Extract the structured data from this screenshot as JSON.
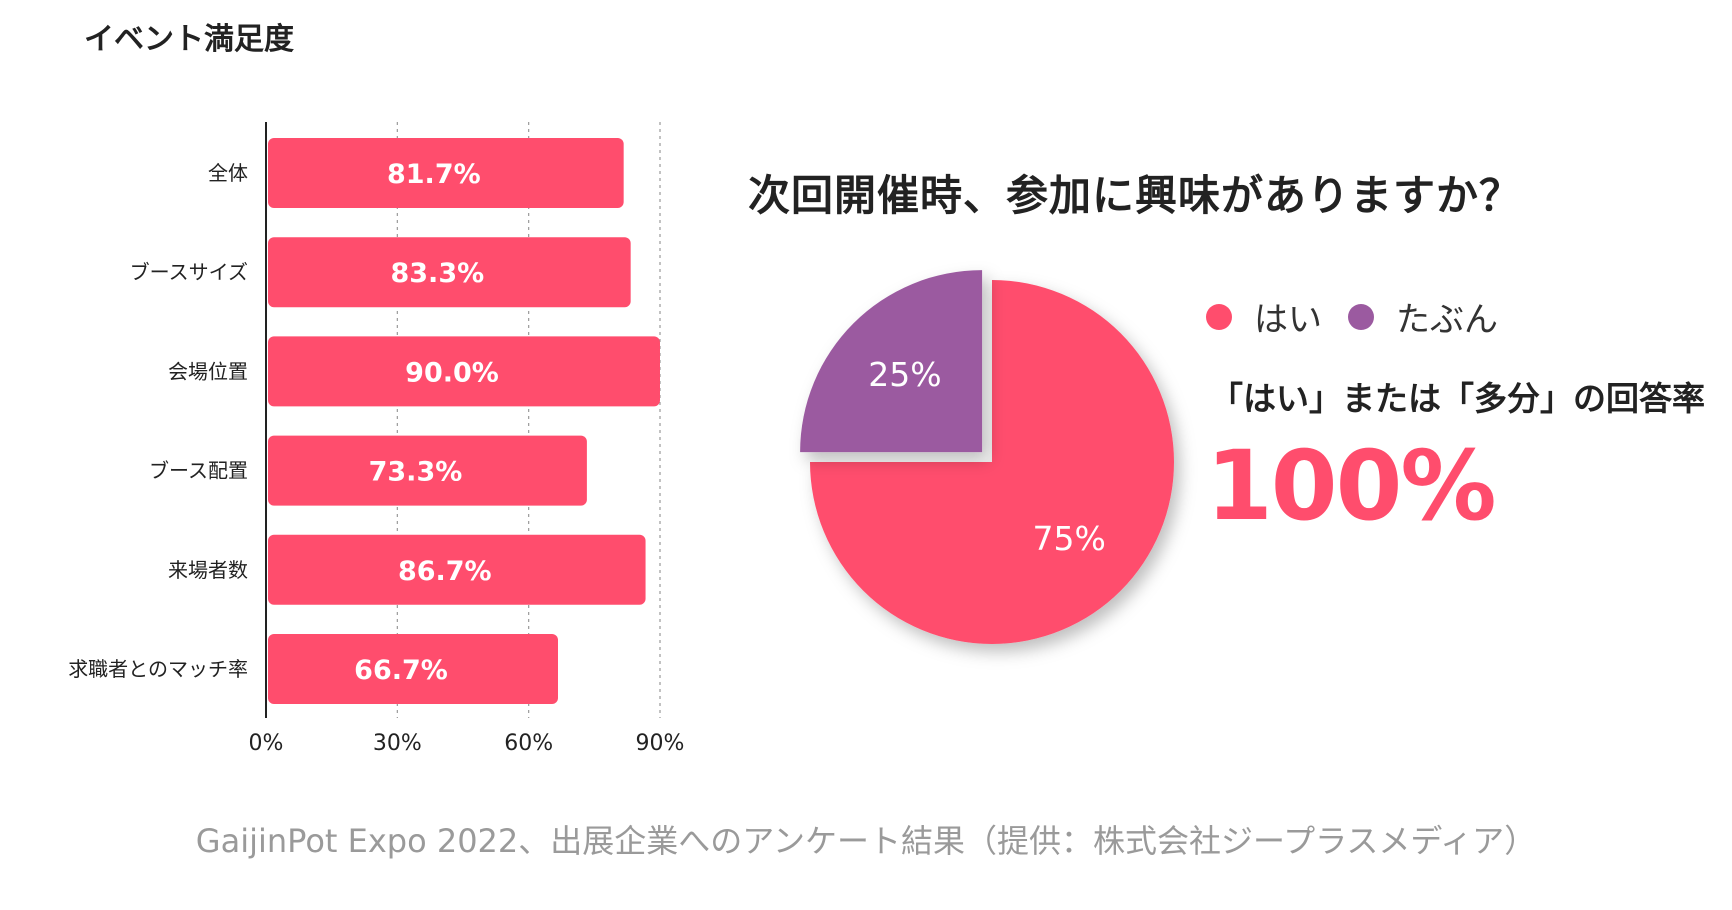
{
  "colors": {
    "pink": "#FF4D6D",
    "purple": "#9B5AA0",
    "axis": "#222222",
    "grid": "#999999"
  },
  "chart_data": [
    {
      "type": "bar",
      "orientation": "horizontal",
      "title": "イベント満足度",
      "categories": [
        "全体",
        "ブースサイズ",
        "会場位置",
        "ブース配置",
        "来場者数",
        "求職者とのマッチ率"
      ],
      "values": [
        81.7,
        83.3,
        90.0,
        73.3,
        86.7,
        66.7
      ],
      "value_labels": [
        "81.7%",
        "83.3%",
        "90.0%",
        "73.3%",
        "86.7%",
        "66.7%"
      ],
      "xlim": [
        0,
        90
      ],
      "xticks": [
        0,
        30,
        60,
        90
      ],
      "xtick_labels": [
        "0%",
        "30%",
        "60%",
        "90%"
      ],
      "grid": true
    },
    {
      "type": "pie",
      "title": "次回開催時、参加に興味がありますか？",
      "labels": [
        "はい",
        "たぶん"
      ],
      "values": [
        75,
        25
      ],
      "value_labels": [
        "75%",
        "25%"
      ],
      "exploded": [
        "たぶん"
      ]
    }
  ],
  "legend": {
    "items": [
      "はい",
      "たぶん"
    ]
  },
  "summary": {
    "label": "「はい」または「多分」の回答率",
    "value": "100%"
  },
  "caption": "GaijinPot Expo 2022、出展企業へのアンケート結果（提供：株式会社ジープラスメディア）"
}
